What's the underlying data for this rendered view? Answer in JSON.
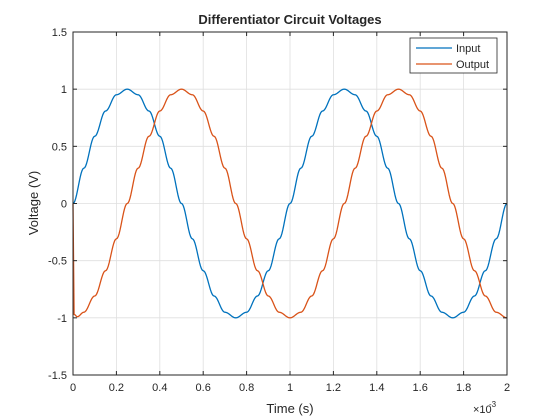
{
  "chart_data": {
    "type": "line",
    "title": "Differentiator Circuit Voltages",
    "xlabel": "Time (s)",
    "ylabel": "Voltage (V)",
    "x_exponent_label": "×10",
    "x_exponent_power": "-3",
    "xlim": [
      0,
      0.002
    ],
    "ylim": [
      -1.5,
      1.5
    ],
    "xticks": [
      0,
      0.0002,
      0.0004,
      0.0006,
      0.0008,
      0.001,
      0.0012,
      0.0014,
      0.0016,
      0.0018,
      0.002
    ],
    "xtick_labels": [
      "0",
      "0.2",
      "0.4",
      "0.6",
      "0.8",
      "1",
      "1.2",
      "1.4",
      "1.6",
      "1.8",
      "2"
    ],
    "yticks": [
      -1.5,
      -1,
      -0.5,
      0,
      0.5,
      1,
      1.5
    ],
    "ytick_labels": [
      "-1.5",
      "-1",
      "-0.5",
      "0",
      "0.5",
      "1",
      "1.5"
    ],
    "grid": true,
    "legend_position": "top-right",
    "series": [
      {
        "name": "Input",
        "color": "#0072BD",
        "x": [
          0,
          5e-05,
          0.0001,
          0.00015,
          0.0002,
          0.00025,
          0.0003,
          0.00035,
          0.0004,
          0.00045,
          0.0005,
          0.00055,
          0.0006,
          0.00065,
          0.0007,
          0.00075,
          0.0008,
          0.00085,
          0.0009,
          0.00095,
          0.001,
          0.00105,
          0.0011,
          0.00115,
          0.0012,
          0.00125,
          0.0013,
          0.00135,
          0.0014,
          0.00145,
          0.0015,
          0.00155,
          0.0016,
          0.00165,
          0.0017,
          0.00175,
          0.0018,
          0.00185,
          0.0019,
          0.00195,
          0.002
        ],
        "y": [
          0,
          0.309,
          0.588,
          0.809,
          0.951,
          1,
          0.951,
          0.809,
          0.588,
          0.309,
          0,
          -0.309,
          -0.588,
          -0.809,
          -0.951,
          -1,
          -0.951,
          -0.809,
          -0.588,
          -0.309,
          0,
          0.309,
          0.588,
          0.809,
          0.951,
          1,
          0.951,
          0.809,
          0.588,
          0.309,
          0,
          -0.309,
          -0.588,
          -0.809,
          -0.951,
          -1,
          -0.951,
          -0.809,
          -0.588,
          -0.309,
          0
        ]
      },
      {
        "name": "Output",
        "color": "#D95319",
        "x": [
          0,
          5e-06,
          2e-05,
          5e-05,
          0.0001,
          0.00015,
          0.0002,
          0.00025,
          0.0003,
          0.00035,
          0.0004,
          0.00045,
          0.0005,
          0.00055,
          0.0006,
          0.00065,
          0.0007,
          0.00075,
          0.0008,
          0.00085,
          0.0009,
          0.00095,
          0.001,
          0.00105,
          0.0011,
          0.00115,
          0.0012,
          0.00125,
          0.0013,
          0.00135,
          0.0014,
          0.00145,
          0.0015,
          0.00155,
          0.0016,
          0.00165,
          0.0017,
          0.00175,
          0.0018,
          0.00185,
          0.0019,
          0.00195,
          0.002
        ],
        "y": [
          0,
          -0.97,
          -0.99,
          -0.951,
          -0.809,
          -0.588,
          -0.309,
          0,
          0.309,
          0.588,
          0.809,
          0.951,
          1,
          0.951,
          0.809,
          0.588,
          0.309,
          0,
          -0.309,
          -0.588,
          -0.809,
          -0.951,
          -1,
          -0.951,
          -0.809,
          -0.588,
          -0.309,
          0,
          0.309,
          0.588,
          0.809,
          0.951,
          1,
          0.951,
          0.809,
          0.588,
          0.309,
          0,
          -0.309,
          -0.588,
          -0.809,
          -0.951,
          -1
        ]
      }
    ]
  }
}
